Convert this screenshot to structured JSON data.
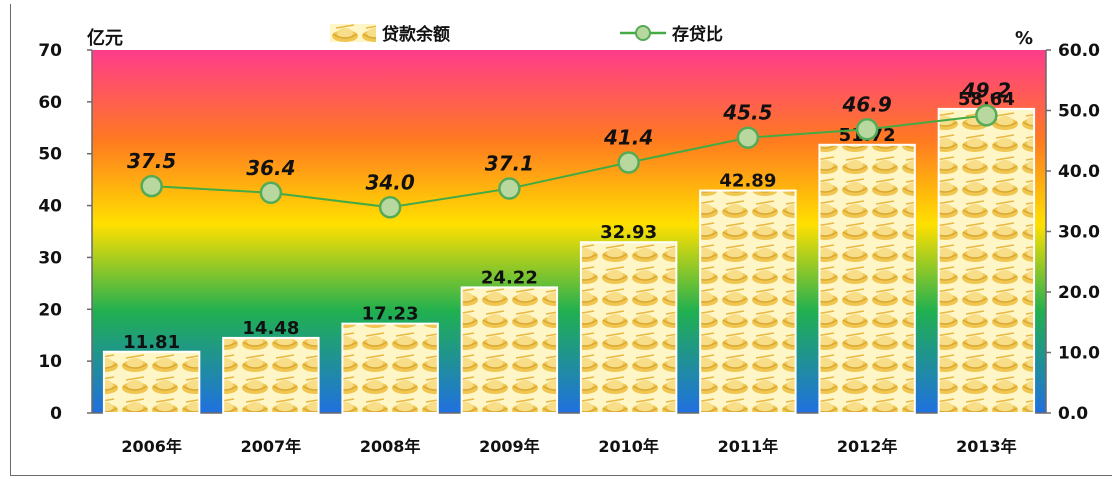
{
  "chart_data": {
    "type": "bar",
    "categories": [
      "2006年",
      "2007年",
      "2008年",
      "2009年",
      "2010年",
      "2011年",
      "2012年",
      "2013年"
    ],
    "series": [
      {
        "name": "贷款余额",
        "type": "bar",
        "axis": "left",
        "values": [
          11.81,
          14.48,
          17.23,
          24.22,
          32.93,
          42.89,
          51.72,
          58.64
        ],
        "labels": [
          "11.81",
          "14.48",
          "17.23",
          "24.22",
          "32.93",
          "42.89",
          "51.72",
          "58.64"
        ]
      },
      {
        "name": "存贷比",
        "type": "line",
        "axis": "right",
        "values": [
          37.5,
          36.4,
          34.0,
          37.1,
          41.4,
          45.5,
          46.9,
          49.2
        ],
        "labels": [
          "37.5",
          "36.4",
          "34.0",
          "37.1",
          "41.4",
          "45.5",
          "46.9",
          "49.2"
        ]
      }
    ],
    "y_left": {
      "unit": "亿元",
      "ylim": [
        0,
        70
      ],
      "ticks": [
        "0",
        "10",
        "20",
        "30",
        "40",
        "50",
        "60",
        "70"
      ]
    },
    "y_right": {
      "unit": "%",
      "ylim": [
        0,
        60
      ],
      "ticks": [
        "0.0",
        "10.0",
        "20.0",
        "30.0",
        "40.0",
        "50.0",
        "60.0"
      ]
    },
    "legend": {
      "placement": "top-center"
    },
    "grid": false,
    "colors": {
      "bar_fill": "#f6d877",
      "bar_ingot": "#e8b83a",
      "line": "#44aa44",
      "marker_fill": "#b8d8a0",
      "marker_stroke": "#55aa55",
      "plot_gradient": [
        "#ff3c8c",
        "#ff7a20",
        "#ffe000",
        "#20b050",
        "#2070e0"
      ]
    }
  }
}
